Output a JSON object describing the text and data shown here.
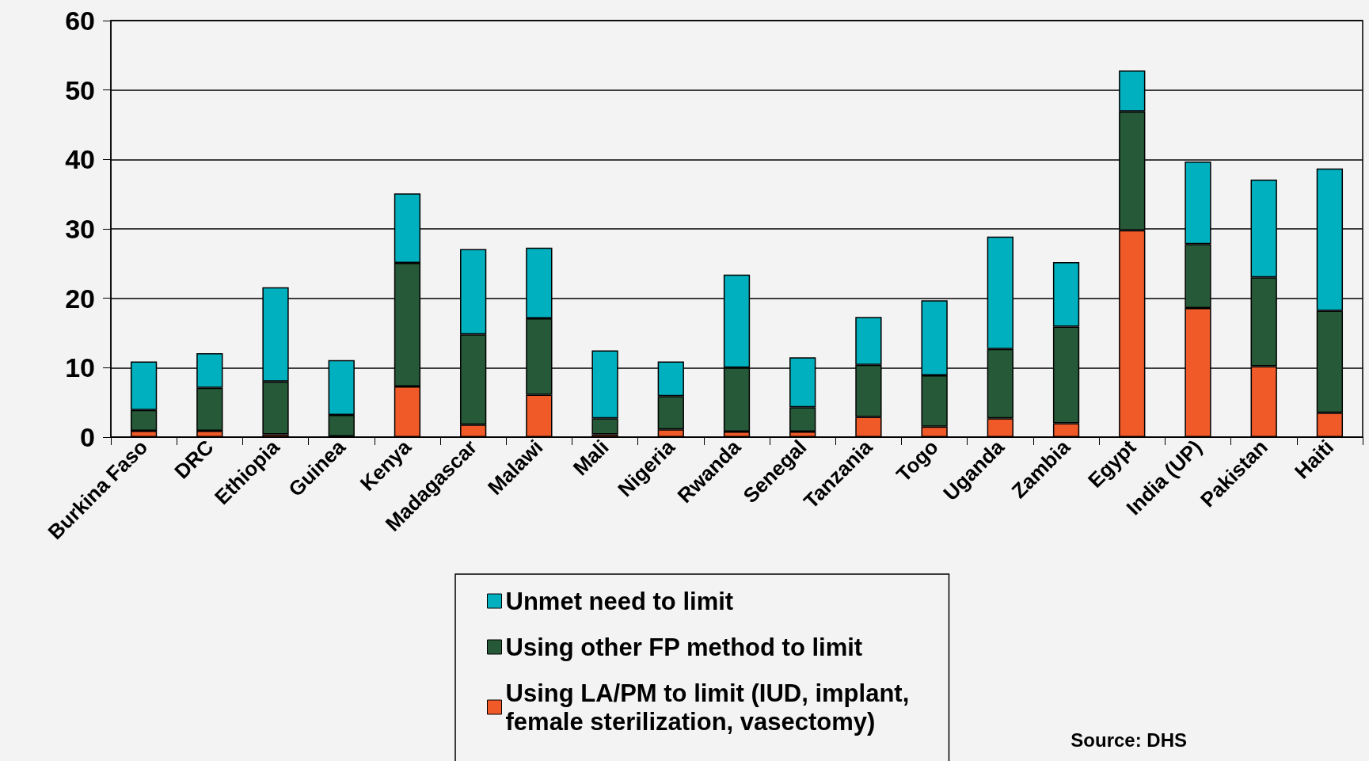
{
  "chart_data": {
    "type": "bar",
    "stacked": true,
    "categories": [
      "Burkina Faso",
      "DRC",
      "Ethiopia",
      "Guinea",
      "Kenya",
      "Madagascar",
      "Malawi",
      "Mali",
      "Nigeria",
      "Rwanda",
      "Senegal",
      "Tanzania",
      "Togo",
      "Uganda",
      "Zambia",
      "Egypt",
      "India (UP)",
      "Pakistan",
      "Haiti"
    ],
    "series": [
      {
        "name": "Using LA/PM to limit (IUD, implant, female sterilization, vasectomy)",
        "color": "#f05a28",
        "values": [
          0.9,
          0.9,
          0.4,
          0.1,
          7.3,
          1.8,
          6.1,
          0.4,
          1.1,
          0.8,
          0.8,
          2.9,
          1.5,
          2.7,
          2.0,
          29.8,
          18.6,
          10.2,
          3.5
        ]
      },
      {
        "name": "Using other FP method to limit",
        "color": "#265937",
        "values": [
          3.0,
          6.2,
          7.6,
          3.1,
          17.8,
          13.0,
          11.0,
          2.3,
          4.8,
          9.2,
          3.5,
          7.5,
          7.4,
          10.0,
          13.9,
          17.1,
          9.2,
          12.8,
          14.7
        ]
      },
      {
        "name": "Unmet need to limit",
        "color": "#00b0bf",
        "values": [
          7.0,
          5.0,
          13.6,
          7.9,
          10.0,
          12.3,
          10.2,
          9.8,
          5.0,
          13.4,
          7.2,
          6.9,
          10.8,
          16.2,
          9.3,
          5.9,
          11.9,
          14.1,
          20.5
        ]
      }
    ],
    "ylim": [
      0,
      60
    ],
    "yticks": [
      0,
      10,
      20,
      30,
      40,
      50,
      60
    ],
    "grid": "y",
    "legend": "bottom",
    "annotations": [
      "Source: DHS"
    ]
  }
}
